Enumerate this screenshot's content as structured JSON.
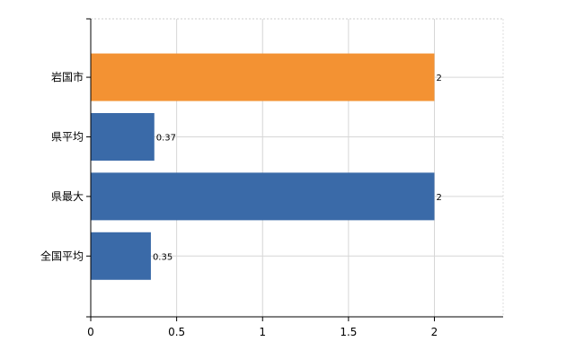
{
  "chart_data": {
    "type": "bar",
    "orientation": "horizontal",
    "categories": [
      "岩国市",
      "県平均",
      "県最大",
      "全国平均"
    ],
    "values": [
      2,
      0.37,
      2,
      0.35
    ],
    "value_labels": [
      "2",
      "0.37",
      "2",
      "0.35"
    ],
    "highlight_color": "#f39233",
    "bar_color": "#3a6aa8",
    "bar_colors": [
      "#f39233",
      "#3a6aa8",
      "#3a6aa8",
      "#3a6aa8"
    ],
    "xlim": [
      0,
      2.4
    ],
    "xticks": [
      0,
      0.5,
      1,
      1.5,
      2
    ],
    "xtick_labels": [
      "0",
      "0.5",
      "1",
      "1.5",
      "2"
    ],
    "grid": true,
    "title": "",
    "xlabel": "",
    "ylabel": ""
  }
}
